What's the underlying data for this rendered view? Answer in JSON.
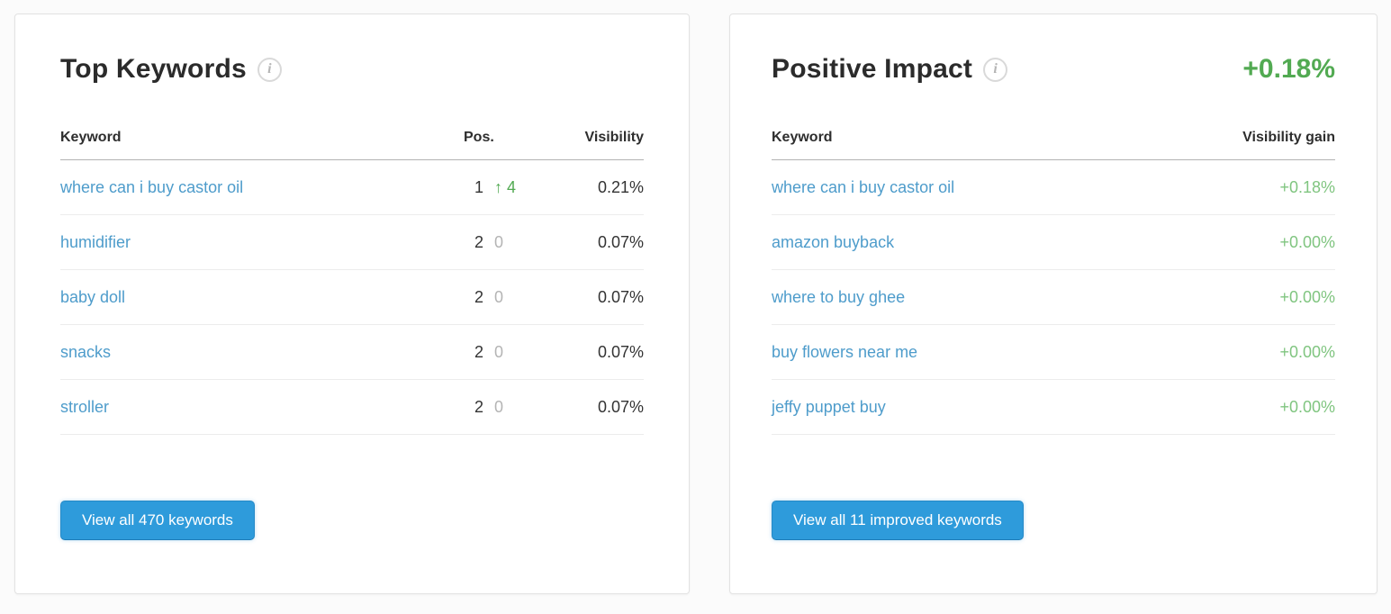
{
  "colors": {
    "link_blue": "#4e9ccb",
    "button_blue": "#2e9bdb",
    "green_strong": "#52aa52",
    "green_soft": "#80c580",
    "muted_gray": "#b4b4b4"
  },
  "top_keywords_card": {
    "title": "Top Keywords",
    "info_glyph": "i",
    "columns": {
      "keyword": "Keyword",
      "position": "Pos.",
      "visibility": "Visibility"
    },
    "rows": [
      {
        "keyword": "where can i buy castor oil",
        "position": "1",
        "change": "↑ 4",
        "visibility": "0.21%"
      },
      {
        "keyword": "humidifier",
        "position": "2",
        "change": "0",
        "visibility": "0.07%"
      },
      {
        "keyword": "baby doll",
        "position": "2",
        "change": "0",
        "visibility": "0.07%"
      },
      {
        "keyword": "snacks",
        "position": "2",
        "change": "0",
        "visibility": "0.07%"
      },
      {
        "keyword": "stroller",
        "position": "2",
        "change": "0",
        "visibility": "0.07%"
      }
    ],
    "button_label": "View all 470 keywords"
  },
  "positive_impact_card": {
    "title": "Positive Impact",
    "info_glyph": "i",
    "total_gain": "+0.18%",
    "columns": {
      "keyword": "Keyword",
      "visibility_gain": "Visibility gain"
    },
    "rows": [
      {
        "keyword": "where can i buy castor oil",
        "gain": "+0.18%"
      },
      {
        "keyword": "amazon buyback",
        "gain": "+0.00%"
      },
      {
        "keyword": "where to buy ghee",
        "gain": "+0.00%"
      },
      {
        "keyword": "buy flowers near me",
        "gain": "+0.00%"
      },
      {
        "keyword": "jeffy puppet buy",
        "gain": "+0.00%"
      }
    ],
    "button_label": "View all 11 improved keywords"
  }
}
